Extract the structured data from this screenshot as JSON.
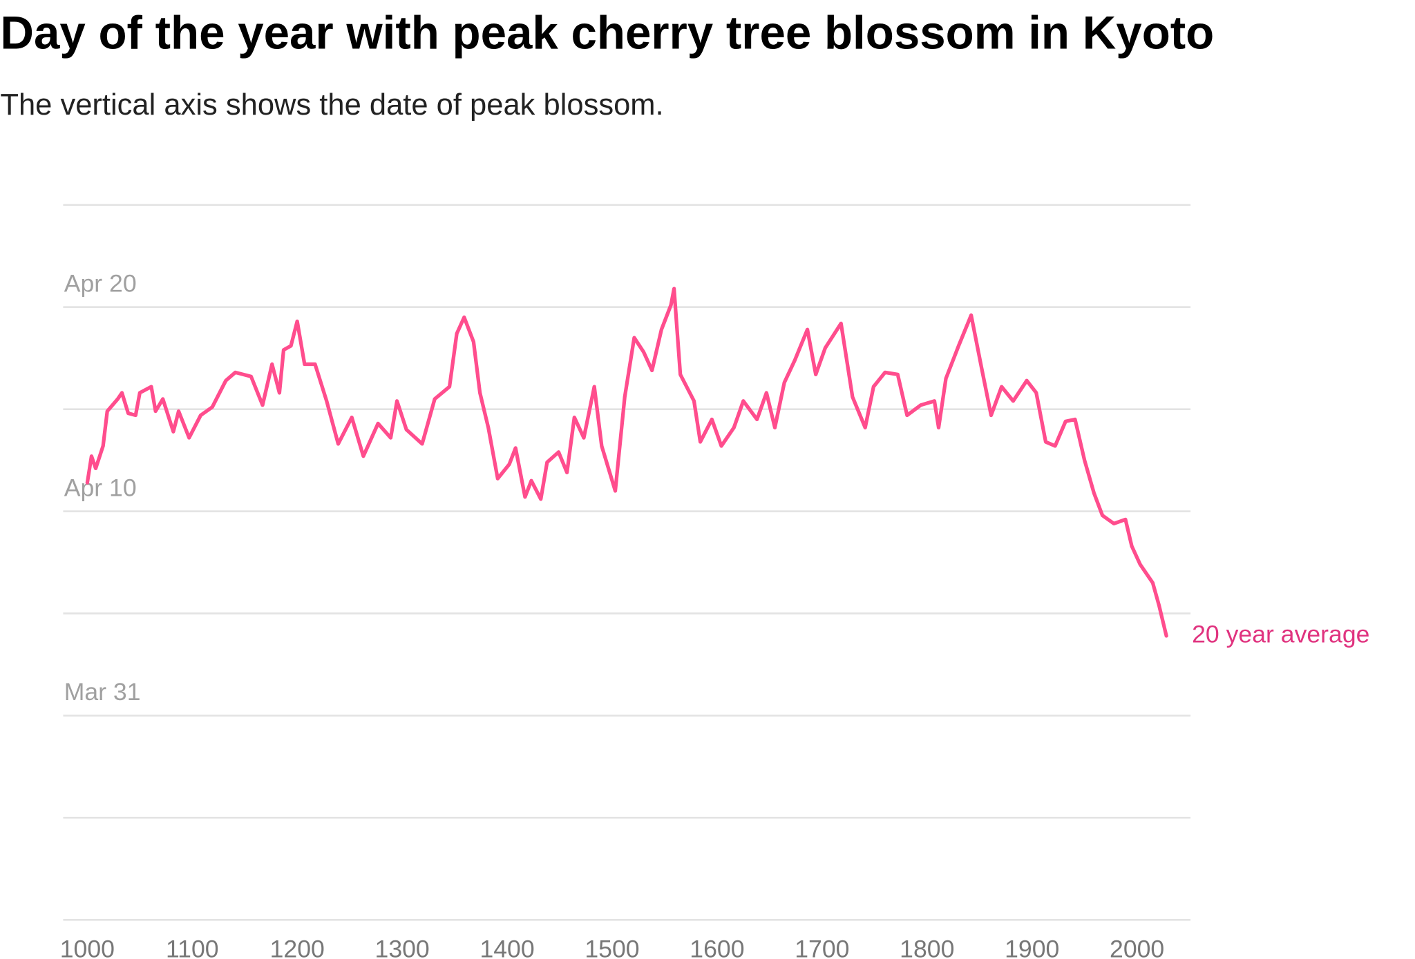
{
  "chart_data": {
    "type": "line",
    "title": "Day of the year with peak cherry tree blossom in Kyoto",
    "subtitle": "The vertical axis shows the date of peak blossom.",
    "x": [
      1000,
      1004,
      1008,
      1015,
      1019,
      1029,
      1033,
      1039,
      1046,
      1050,
      1061,
      1065,
      1072,
      1082,
      1087,
      1097,
      1108,
      1119,
      1132,
      1141,
      1156,
      1167,
      1176,
      1183,
      1187,
      1194,
      1200,
      1207,
      1217,
      1228,
      1239,
      1252,
      1263,
      1277,
      1289,
      1295,
      1304,
      1319,
      1331,
      1345,
      1352,
      1359,
      1368,
      1374,
      1382,
      1391,
      1402,
      1408,
      1417,
      1423,
      1432,
      1438,
      1449,
      1457,
      1464,
      1473,
      1483,
      1490,
      1503,
      1512,
      1521,
      1530,
      1538,
      1547,
      1556,
      1559,
      1565,
      1578,
      1584,
      1595,
      1604,
      1616,
      1625,
      1638,
      1647,
      1655,
      1664,
      1674,
      1686,
      1694,
      1703,
      1718,
      1729,
      1741,
      1749,
      1760,
      1772,
      1781,
      1794,
      1807,
      1811,
      1818,
      1830,
      1842,
      1852,
      1861,
      1871,
      1882,
      1895,
      1904,
      1913,
      1922,
      1932,
      1941,
      1950,
      1959,
      1967,
      1978,
      1989,
      1995,
      2003,
      2015,
      2021,
      2028
    ],
    "series": [
      {
        "name": "20 year average",
        "color": "#ff4d8d",
        "values": [
          101.4,
          102.7,
          102.1,
          103.2,
          104.9,
          105.5,
          105.8,
          104.8,
          104.7,
          105.8,
          106.1,
          104.9,
          105.5,
          103.9,
          104.9,
          103.6,
          104.7,
          105.1,
          106.4,
          106.8,
          106.6,
          105.2,
          107.2,
          105.8,
          107.9,
          108.1,
          109.3,
          107.2,
          107.2,
          105.4,
          103.3,
          104.6,
          102.7,
          104.3,
          103.6,
          105.4,
          104.0,
          103.3,
          105.5,
          106.1,
          108.7,
          109.5,
          108.3,
          105.8,
          104.1,
          101.6,
          102.3,
          103.1,
          100.7,
          101.5,
          100.6,
          102.4,
          102.9,
          101.9,
          104.6,
          103.6,
          106.1,
          103.2,
          101.0,
          105.6,
          108.5,
          107.8,
          106.9,
          108.9,
          110.1,
          110.9,
          106.7,
          105.4,
          103.4,
          104.5,
          103.2,
          104.1,
          105.4,
          104.5,
          105.8,
          104.1,
          106.3,
          107.4,
          108.9,
          106.7,
          108.0,
          109.2,
          105.6,
          104.1,
          106.1,
          106.8,
          106.7,
          104.7,
          105.2,
          105.4,
          104.1,
          106.5,
          108.1,
          109.6,
          107.0,
          104.7,
          106.1,
          105.4,
          106.4,
          105.8,
          103.4,
          103.2,
          104.4,
          104.5,
          102.5,
          100.9,
          99.8,
          99.4,
          99.6,
          98.3,
          97.4,
          96.5,
          95.4,
          93.9
        ]
      }
    ],
    "xlim": [
      977,
      2051
    ],
    "xticks": [
      1000,
      1100,
      1200,
      1300,
      1400,
      1500,
      1600,
      1700,
      1800,
      1900,
      2000
    ],
    "ylim": [
      80,
      115
    ],
    "yticks": [
      {
        "value": 115,
        "label": null
      },
      {
        "value": 110,
        "label": "Apr 20"
      },
      {
        "value": 105,
        "label": null
      },
      {
        "value": 100,
        "label": "Apr 10"
      },
      {
        "value": 95,
        "label": null
      },
      {
        "value": 90,
        "label": "Mar 31"
      },
      {
        "value": 85,
        "label": null
      },
      {
        "value": 80,
        "label": null
      }
    ],
    "grid": true
  }
}
